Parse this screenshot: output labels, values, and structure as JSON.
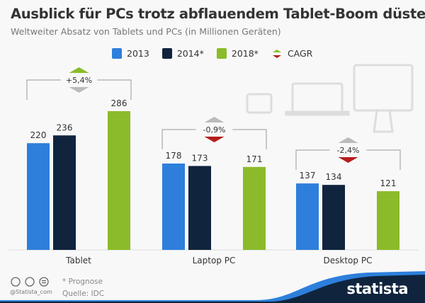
{
  "title": "Ausblick für PCs trotz abflauendem Tablet-Boom düster",
  "subtitle": "Weltweiter Absatz von Tablets und PCs (in Millionen Geräten)",
  "legend": {
    "s2013": "2013",
    "s2014": "2014*",
    "s2018": "2018*",
    "cagr": "CAGR"
  },
  "colors": {
    "2013": "#2d7fdb",
    "2014*": "#10243d",
    "2018*": "#8bbb2a",
    "up": "#8bbb2a",
    "down": "#b71c1c",
    "neutral": "#bbbbbb"
  },
  "chart_data": {
    "type": "bar",
    "title": "Ausblick für PCs trotz abflauendem Tablet-Boom düster",
    "subtitle": "Weltweiter Absatz von Tablets und PCs (in Millionen Geräten)",
    "categories": [
      "Tablet",
      "Laptop PC",
      "Desktop PC"
    ],
    "series": [
      {
        "name": "2013",
        "values": [
          220,
          178,
          137
        ]
      },
      {
        "name": "2014*",
        "values": [
          236,
          173,
          134
        ]
      },
      {
        "name": "2018*",
        "values": [
          286,
          171,
          121
        ]
      }
    ],
    "cagr": [
      {
        "label": "+5,4%",
        "direction": "up"
      },
      {
        "label": "-0,9%",
        "direction": "down"
      },
      {
        "label": "-2,4%",
        "direction": "down"
      }
    ],
    "ylim": [
      0,
      300
    ],
    "grid": false,
    "legend_position": "top"
  },
  "footer": {
    "note": "* Prognose",
    "source": "Quelle: IDC",
    "handle": "@Statista_com",
    "logo": "statista"
  }
}
